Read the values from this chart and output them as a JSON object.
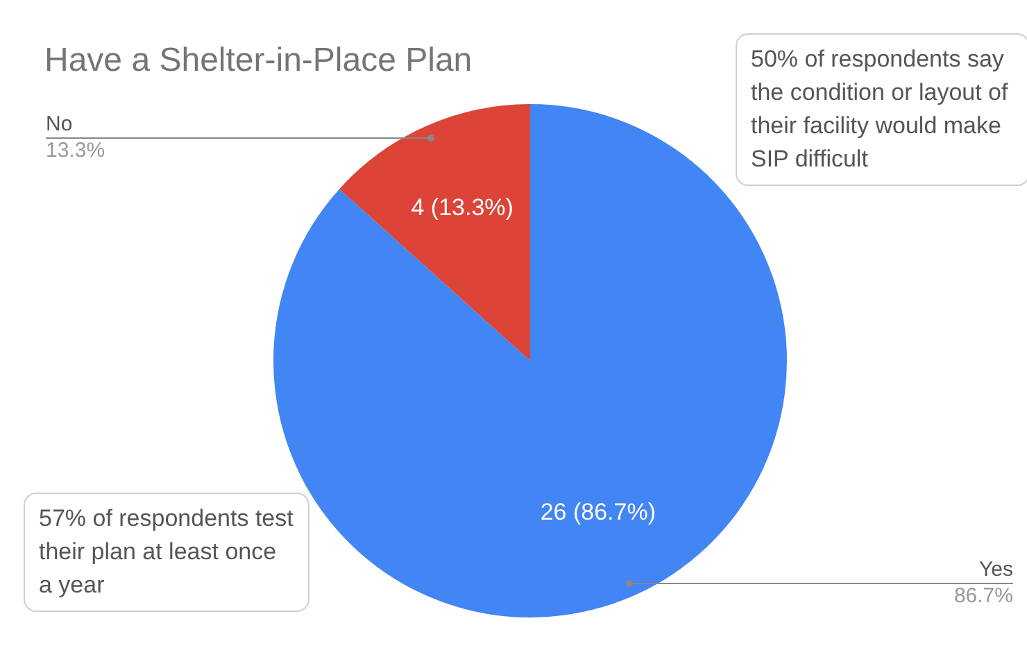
{
  "chart_data": {
    "type": "pie",
    "title": "Have a Shelter-in-Place Plan",
    "categories": [
      "Yes",
      "No"
    ],
    "values": [
      26,
      4
    ],
    "colors": [
      "#4285f4",
      "#db4437"
    ],
    "value_labels": [
      "26 (86.7%)",
      "4 (13.3%)"
    ],
    "legend": false,
    "annotations": [
      {
        "text": "86.7%",
        "x": "Yes"
      },
      {
        "text": "13.3%",
        "x": "No"
      },
      "50% of respondents say the condition or layout of their facility would make SIP difficult",
      "57% of respondents test their plan at least once a year"
    ]
  }
}
